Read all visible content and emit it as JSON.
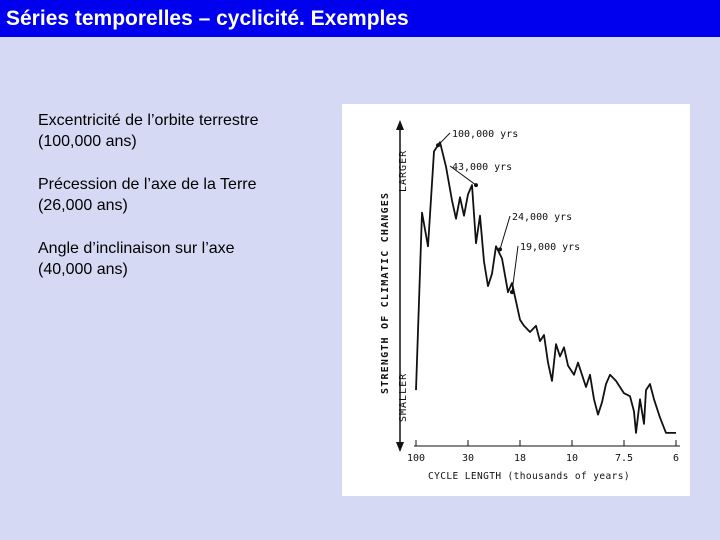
{
  "title": "Séries temporelles – cyclicité. Exemples",
  "bullets": [
    {
      "line1": "Excentricité de l’orbite terrestre",
      "line2": "(100,000 ans)"
    },
    {
      "line1": "Précession de l’axe de la Terre",
      "line2": "(26,000 ans)"
    },
    {
      "line1": "Angle d’inclinaison sur l’axe",
      "line2": "(40,000 ans)"
    }
  ],
  "chart_data": {
    "type": "line",
    "xlabel": "CYCLE LENGTH (thousands of years)",
    "ylabel": "STRENGTH OF CLIMATIC CHANGES",
    "y_top_label": "LARGER",
    "y_bottom_label": "SMALLER",
    "x_ticks": [
      "100",
      "30",
      "18",
      "10",
      "7.5",
      "6"
    ],
    "series": [
      {
        "values": [
          [
            0,
            0.15
          ],
          [
            0.15,
            0.73
          ],
          [
            0.3,
            0.62
          ],
          [
            0.45,
            0.93
          ],
          [
            0.6,
            0.96
          ],
          [
            0.75,
            0.88
          ],
          [
            0.9,
            0.77
          ],
          [
            1.0,
            0.71
          ],
          [
            1.1,
            0.78
          ],
          [
            1.2,
            0.72
          ],
          [
            1.3,
            0.79
          ],
          [
            1.4,
            0.82
          ],
          [
            1.5,
            0.63
          ],
          [
            1.6,
            0.72
          ],
          [
            1.7,
            0.57
          ],
          [
            1.8,
            0.49
          ],
          [
            1.9,
            0.53
          ],
          [
            2.0,
            0.62
          ],
          [
            2.15,
            0.58
          ],
          [
            2.3,
            0.47
          ],
          [
            2.4,
            0.5
          ],
          [
            2.6,
            0.38
          ],
          [
            2.7,
            0.36
          ],
          [
            2.85,
            0.34
          ],
          [
            3.0,
            0.36
          ],
          [
            3.1,
            0.31
          ],
          [
            3.2,
            0.33
          ],
          [
            3.3,
            0.24
          ],
          [
            3.4,
            0.18
          ],
          [
            3.5,
            0.3
          ],
          [
            3.6,
            0.26
          ],
          [
            3.7,
            0.29
          ],
          [
            3.8,
            0.23
          ],
          [
            3.95,
            0.2
          ],
          [
            4.05,
            0.24
          ],
          [
            4.15,
            0.2
          ],
          [
            4.25,
            0.16
          ],
          [
            4.35,
            0.2
          ],
          [
            4.45,
            0.12
          ],
          [
            4.55,
            0.07
          ],
          [
            4.65,
            0.11
          ],
          [
            4.75,
            0.17
          ],
          [
            4.85,
            0.2
          ],
          [
            5.0,
            0.18
          ],
          [
            5.2,
            0.14
          ],
          [
            5.35,
            0.13
          ],
          [
            5.45,
            0.08
          ],
          [
            5.5,
            0.01
          ],
          [
            5.6,
            0.12
          ],
          [
            5.7,
            0.04
          ],
          [
            5.75,
            0.15
          ],
          [
            5.85,
            0.17
          ],
          [
            5.95,
            0.12
          ],
          [
            6.1,
            0.06
          ],
          [
            6.25,
            0.01
          ],
          [
            6.5,
            0.01
          ]
        ]
      }
    ],
    "annotations": [
      {
        "text": "100,000 yrs",
        "x": 0.5,
        "y": 0.95
      },
      {
        "text": "43,000 yrs",
        "x": 1.45,
        "y": 0.82
      },
      {
        "text": "24,000 yrs",
        "x": 2.05,
        "y": 0.61
      },
      {
        "text": "19,000 yrs",
        "x": 2.35,
        "y": 0.47
      }
    ],
    "xlim": [
      0,
      6.5
    ],
    "ylim": [
      0,
      1
    ],
    "grid": false
  }
}
